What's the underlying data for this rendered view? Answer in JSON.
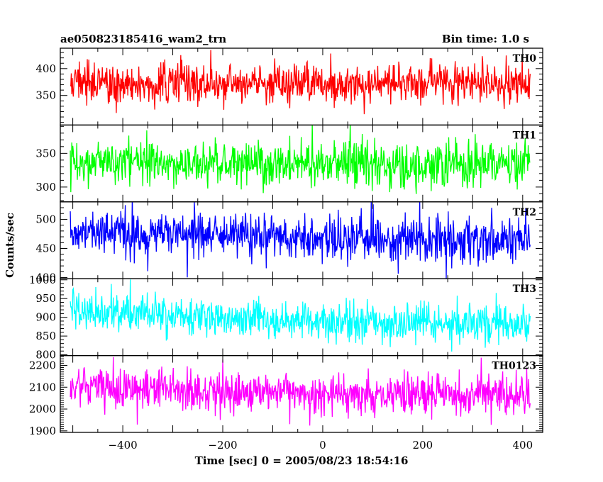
{
  "header": {
    "left_title": "ae050823185416_wam2_trn",
    "right_title": "Bin time: 1.0 s"
  },
  "chart_data": {
    "type": "line",
    "xlabel": "Time [sec] 0 = 2005/08/23 18:54:16",
    "ylabel": "Counts/sec",
    "xlim": [
      -525,
      440
    ],
    "x_range": [
      -505,
      415
    ],
    "x_step": 1.0,
    "xticks": [
      -400,
      -200,
      0,
      200,
      400
    ],
    "xtick_labels": [
      "−400",
      "−200",
      "0",
      "200",
      "400"
    ],
    "panels": [
      {
        "name": "TH0",
        "color": "#ff0000",
        "ylim": [
          295,
          438
        ],
        "yticks": [
          350,
          400
        ],
        "ytick_labels": [
          "350",
          "400"
        ],
        "trend": [
          [
            -505,
            372
          ],
          [
            0,
            372
          ],
          [
            415,
            372
          ]
        ],
        "noise_sd": 19
      },
      {
        "name": "TH1",
        "color": "#00ff00",
        "ylim": [
          278,
          392
        ],
        "yticks": [
          300,
          350
        ],
        "ytick_labels": [
          "300",
          "350"
        ],
        "trend": [
          [
            -505,
            337
          ],
          [
            0,
            333
          ],
          [
            415,
            334
          ]
        ],
        "noise_sd": 17
      },
      {
        "name": "TH2",
        "color": "#0000ff",
        "ylim": [
          398,
          530
        ],
        "yticks": [
          400,
          450,
          500
        ],
        "ytick_labels": [
          "400",
          "450",
          "500"
        ],
        "trend": [
          [
            -505,
            478
          ],
          [
            0,
            467
          ],
          [
            415,
            463
          ]
        ],
        "noise_sd": 20
      },
      {
        "name": "TH3",
        "color": "#00ffff",
        "ylim": [
          798,
          1003
        ],
        "yticks": [
          800,
          850,
          900,
          950,
          1000
        ],
        "ytick_labels": [
          "800",
          "850",
          "900",
          "950",
          "1000"
        ],
        "trend": [
          [
            -505,
            915
          ],
          [
            0,
            890
          ],
          [
            415,
            880
          ]
        ],
        "noise_sd": 27
      },
      {
        "name": "TH0123",
        "color": "#ff00ff",
        "ylim": [
          1893,
          2245
        ],
        "yticks": [
          1900,
          2000,
          2100,
          2200
        ],
        "ytick_labels": [
          "1900",
          "2000",
          "2100",
          "2200"
        ],
        "trend": [
          [
            -505,
            2100
          ],
          [
            0,
            2070
          ],
          [
            415,
            2060
          ]
        ],
        "noise_sd": 48
      }
    ]
  }
}
